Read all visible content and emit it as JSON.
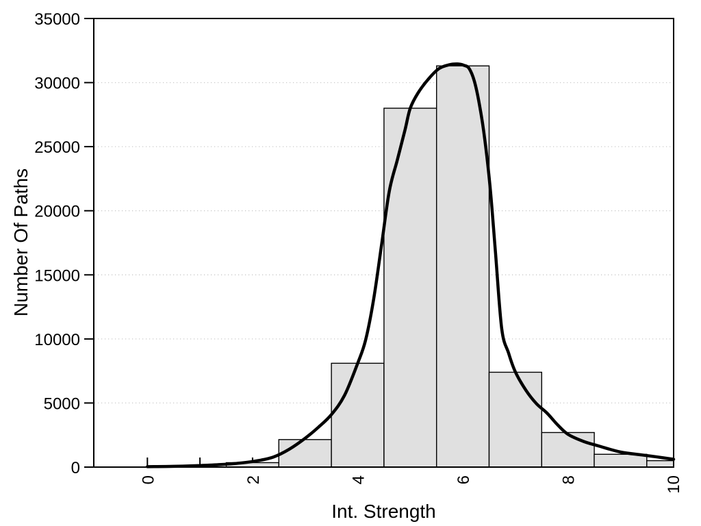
{
  "page": {
    "background": "#ffffff"
  },
  "chart_data": {
    "type": "bar",
    "subtype": "histogram-with-fit-curve",
    "title": "",
    "xlabel": "Int. Strength",
    "ylabel": "Number Of Paths",
    "xlim": [
      -1.02,
      10.01
    ],
    "ylim": [
      0,
      35000
    ],
    "grid": "horizontal-dotted",
    "legend": "none",
    "x_major_ticks": {
      "values": [
        0,
        2,
        4,
        6,
        8,
        10
      ],
      "labels": [
        "0",
        "2",
        "4",
        "6",
        "8",
        "10"
      ]
    },
    "x_minor_tick_values": [
      0,
      1,
      2,
      3,
      4,
      5,
      6,
      7,
      8,
      9,
      10
    ],
    "y_ticks": {
      "values": [
        0,
        5000,
        10000,
        15000,
        20000,
        25000,
        30000,
        35000
      ],
      "labels": [
        "0",
        "5000",
        "10000",
        "15000",
        "20000",
        "25000",
        "30000",
        "35000"
      ]
    },
    "grid_values": [
      5000,
      10000,
      15000,
      20000,
      25000,
      30000
    ],
    "histogram": {
      "bin_width": 1,
      "bin_edges": [
        1.5,
        2.5,
        3.5,
        4.5,
        5.5,
        6.5,
        7.5,
        8.5,
        9.5,
        10.5
      ],
      "bin_centers": [
        2,
        3,
        4,
        5,
        6,
        7,
        8,
        9,
        10
      ],
      "counts": [
        350,
        2150,
        8100,
        28000,
        31300,
        7400,
        2700,
        1000,
        500
      ]
    },
    "fit_curve": {
      "name": "density-fit-curve",
      "points": [
        [
          0,
          30
        ],
        [
          0.5,
          60
        ],
        [
          1,
          120
        ],
        [
          1.4,
          200
        ],
        [
          1.8,
          330
        ],
        [
          2.1,
          500
        ],
        [
          2.4,
          790
        ],
        [
          2.7,
          1400
        ],
        [
          3.0,
          2250
        ],
        [
          3.25,
          3100
        ],
        [
          3.5,
          4100
        ],
        [
          3.75,
          5600
        ],
        [
          4.0,
          8100
        ],
        [
          4.15,
          9900
        ],
        [
          4.3,
          13000
        ],
        [
          4.45,
          17200
        ],
        [
          4.6,
          21500
        ],
        [
          4.75,
          23900
        ],
        [
          4.9,
          26300
        ],
        [
          5.0,
          28000
        ],
        [
          5.15,
          29200
        ],
        [
          5.35,
          30300
        ],
        [
          5.55,
          31100
        ],
        [
          5.75,
          31400
        ],
        [
          5.9,
          31450
        ],
        [
          6.02,
          31350
        ],
        [
          6.12,
          31100
        ],
        [
          6.22,
          30100
        ],
        [
          6.32,
          28200
        ],
        [
          6.42,
          25500
        ],
        [
          6.52,
          21800
        ],
        [
          6.62,
          16800
        ],
        [
          6.74,
          10800
        ],
        [
          6.87,
          8900
        ],
        [
          7.0,
          7420
        ],
        [
          7.2,
          6000
        ],
        [
          7.4,
          4950
        ],
        [
          7.6,
          4220
        ],
        [
          7.8,
          3310
        ],
        [
          8.0,
          2560
        ],
        [
          8.3,
          2000
        ],
        [
          8.6,
          1630
        ],
        [
          9.0,
          1175
        ],
        [
          9.4,
          950
        ],
        [
          9.7,
          790
        ],
        [
          10.01,
          610
        ]
      ]
    },
    "colors": {
      "bar_fill": "#e0e0e0",
      "bar_stroke": "#000000",
      "curve": "#000000",
      "grid": "#c8c8c8",
      "axis": "#000000",
      "text": "#000000",
      "background": "#ffffff"
    }
  }
}
